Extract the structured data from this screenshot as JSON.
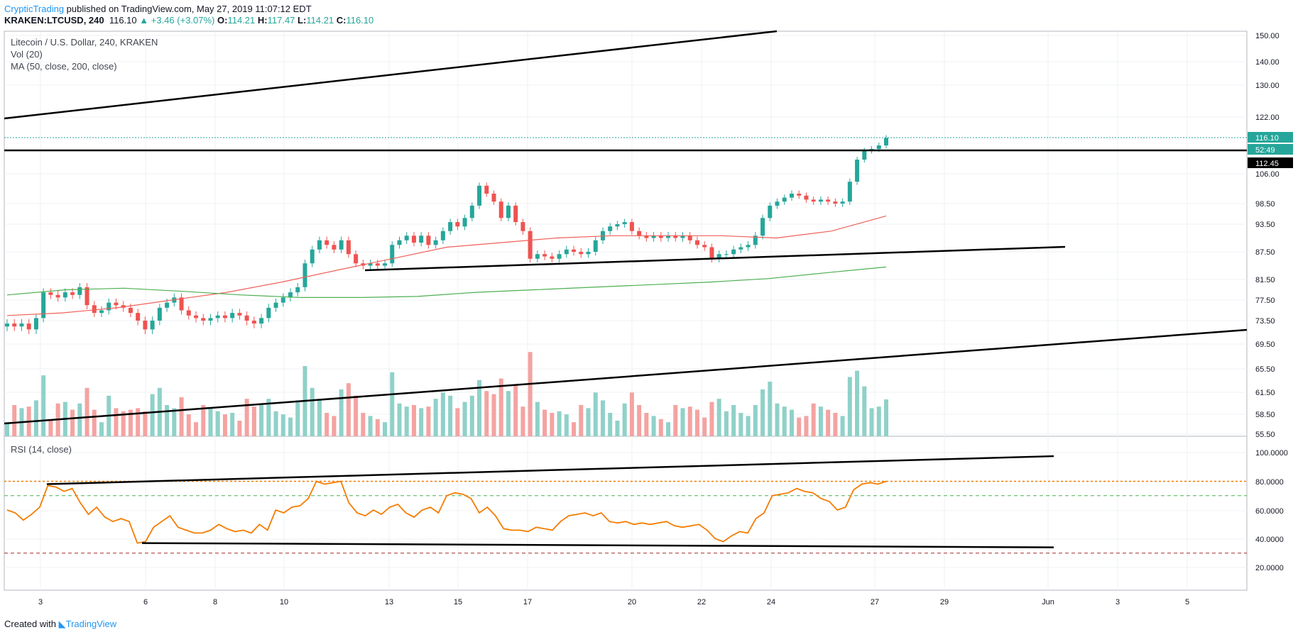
{
  "header": {
    "author": "CrypticTrading",
    "published_text": "published on TradingView.com, May 27, 2019 11:07:12 EDT",
    "symbol": "KRAKEN:LTCUSD, 240",
    "last": "116.10",
    "change": "+3.46 (+3.07%)",
    "o_label": "O:",
    "o": "114.21",
    "h_label": "H:",
    "h": "117.47",
    "l_label": "L:",
    "l": "114.21",
    "c_label": "C:",
    "c": "116.10"
  },
  "legend": {
    "title": "Litecoin / U.S. Dollar, 240, KRAKEN",
    "vol": "Vol (20)",
    "ma": "MA (50, close, 200, close)",
    "rsi": "RSI (14, close)"
  },
  "footer": {
    "created_with": "Created with",
    "brand": "TradingView"
  },
  "colors": {
    "up": "#26a69a",
    "down": "#ef5350",
    "ma50": "#f0605a",
    "ma200": "#4caf50",
    "rsi": "#f57c00",
    "accent": "#2196f3"
  },
  "chart_data": [
    {
      "type": "candlestick",
      "title": "Litecoin / U.S. Dollar, 240, KRAKEN",
      "y_ticks": [
        "150.00",
        "140.00",
        "130.00",
        "122.00",
        "106.00",
        "98.50",
        "93.50",
        "87.50",
        "81.50",
        "77.50",
        "73.50",
        "69.50",
        "65.50",
        "61.50",
        "58.50",
        "55.50"
      ],
      "x_ticks": [
        "3",
        "6",
        "8",
        "10",
        "13",
        "15",
        "17",
        "20",
        "22",
        "24",
        "27",
        "29",
        "Jun",
        "3",
        "5"
      ],
      "price_labels": {
        "last": "116.10",
        "countdown": "52:49",
        "level": "112.45"
      },
      "candles_close": [
        73,
        72.5,
        73,
        72,
        74,
        79,
        78.5,
        78,
        79,
        78.5,
        80,
        76.5,
        75,
        75.5,
        77,
        76.5,
        76,
        75,
        73.5,
        72,
        73.5,
        76,
        77,
        78,
        75.5,
        74.5,
        74,
        73.5,
        74,
        74.5,
        74,
        75,
        74.5,
        73.5,
        73,
        74,
        76,
        77,
        78,
        79,
        80,
        85,
        88,
        90,
        89,
        88,
        90,
        87,
        85,
        84.5,
        85,
        84.5,
        85,
        89,
        90,
        91,
        89.5,
        91,
        89,
        90,
        92,
        94,
        93,
        95,
        98,
        103,
        101,
        99,
        95,
        98,
        94,
        92,
        86,
        87,
        86.5,
        86,
        87,
        88,
        87.5,
        87,
        87.5,
        90,
        92,
        93,
        93.5,
        94,
        92,
        91,
        90.5,
        91,
        90.5,
        91,
        90.5,
        91,
        90,
        89,
        88.5,
        86,
        87,
        87,
        88,
        88.5,
        89,
        91,
        95,
        98,
        99,
        100,
        101,
        100.5,
        99.5,
        99,
        99.5,
        99,
        98.5,
        99,
        104,
        110,
        112.5,
        113,
        114,
        116.1
      ],
      "ma50": [
        74.5,
        75,
        76,
        77.5,
        79,
        81,
        83.5,
        86,
        88.5,
        89.5,
        90.5,
        91,
        91,
        91,
        90.5,
        92,
        95.5
      ],
      "ma200": [
        78.5,
        79.5,
        79.8,
        79.2,
        78.5,
        78,
        78,
        78.2,
        79,
        79.5,
        80,
        80.5,
        81,
        81.7,
        83,
        84.2
      ],
      "volume_note": "Vol (20) histogram bars"
    },
    {
      "type": "line",
      "title": "RSI (14, close)",
      "y_ticks": [
        "100.0000",
        "80.0000",
        "60.0000",
        "40.0000",
        "20.0000"
      ],
      "levels": {
        "upper": 80,
        "middle": 70,
        "lower": 30
      },
      "values": [
        60,
        58,
        53,
        57,
        62,
        77,
        76,
        73,
        75,
        65,
        57,
        62,
        55,
        52,
        54,
        52,
        37,
        38,
        48,
        52,
        56,
        48,
        46,
        44,
        44,
        46,
        50,
        47,
        45,
        46,
        44,
        50,
        46,
        60,
        58,
        62,
        63,
        68,
        80,
        78,
        79,
        80,
        65,
        58,
        56,
        60,
        57,
        62,
        64,
        58,
        55,
        60,
        62,
        58,
        70,
        72,
        71,
        68,
        58,
        62,
        56,
        47,
        46,
        46,
        45,
        48,
        47,
        46,
        52,
        56,
        57,
        58,
        56,
        58,
        52,
        51,
        52,
        50,
        51,
        50,
        51,
        52,
        49,
        48,
        49,
        50,
        46,
        40,
        38,
        42,
        45,
        44,
        54,
        58,
        70,
        71,
        72,
        75,
        73,
        72,
        68,
        66,
        60,
        62,
        74,
        78,
        79,
        78,
        80
      ]
    }
  ]
}
